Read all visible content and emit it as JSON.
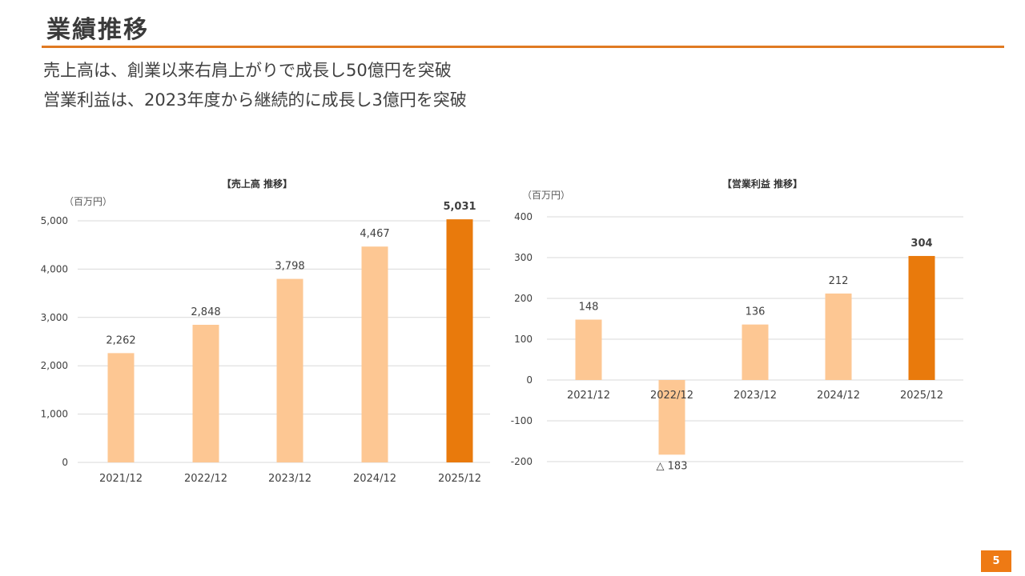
{
  "slide": {
    "title": "業績推移",
    "lines": [
      "売上高は、創業以来右肩上がりで成長し50億円を突破",
      "営業利益は、2023年度から継続的に成長し3億円を突破"
    ],
    "page_number": "5"
  },
  "colors": {
    "accent": "#E07A22",
    "bar_light": "#FDC793",
    "bar_highlight": "#E97A0C",
    "grid": "#D9D9D9"
  },
  "chart_data": [
    {
      "type": "bar",
      "title": "【売上高 推移】",
      "unit": "（百万円）",
      "categories": [
        "2021/12",
        "2022/12",
        "2023/12",
        "2024/12",
        "2025/12"
      ],
      "values": [
        2262,
        2848,
        3798,
        4467,
        5031
      ],
      "data_labels": [
        "2,262",
        "2,848",
        "3,798",
        "4,467",
        "5,031"
      ],
      "highlight_index": 4,
      "ylim": [
        0,
        5000
      ],
      "yticks": [
        0,
        1000,
        2000,
        3000,
        4000,
        5000
      ],
      "ytick_labels": [
        "0",
        "1,000",
        "2,000",
        "3,000",
        "4,000",
        "5,000"
      ],
      "grid": true
    },
    {
      "type": "bar",
      "title": "【営業利益 推移】",
      "unit": "（百万円）",
      "categories": [
        "2021/12",
        "2022/12",
        "2023/12",
        "2024/12",
        "2025/12"
      ],
      "values": [
        148,
        -183,
        136,
        212,
        304
      ],
      "data_labels": [
        "148",
        "△ 183",
        "136",
        "212",
        "304"
      ],
      "highlight_index": 4,
      "ylim": [
        -200,
        400
      ],
      "yticks": [
        -200,
        -100,
        0,
        100,
        200,
        300,
        400
      ],
      "ytick_labels": [
        "-200",
        "-100",
        "0",
        "100",
        "200",
        "300",
        "400"
      ],
      "grid": true
    }
  ]
}
